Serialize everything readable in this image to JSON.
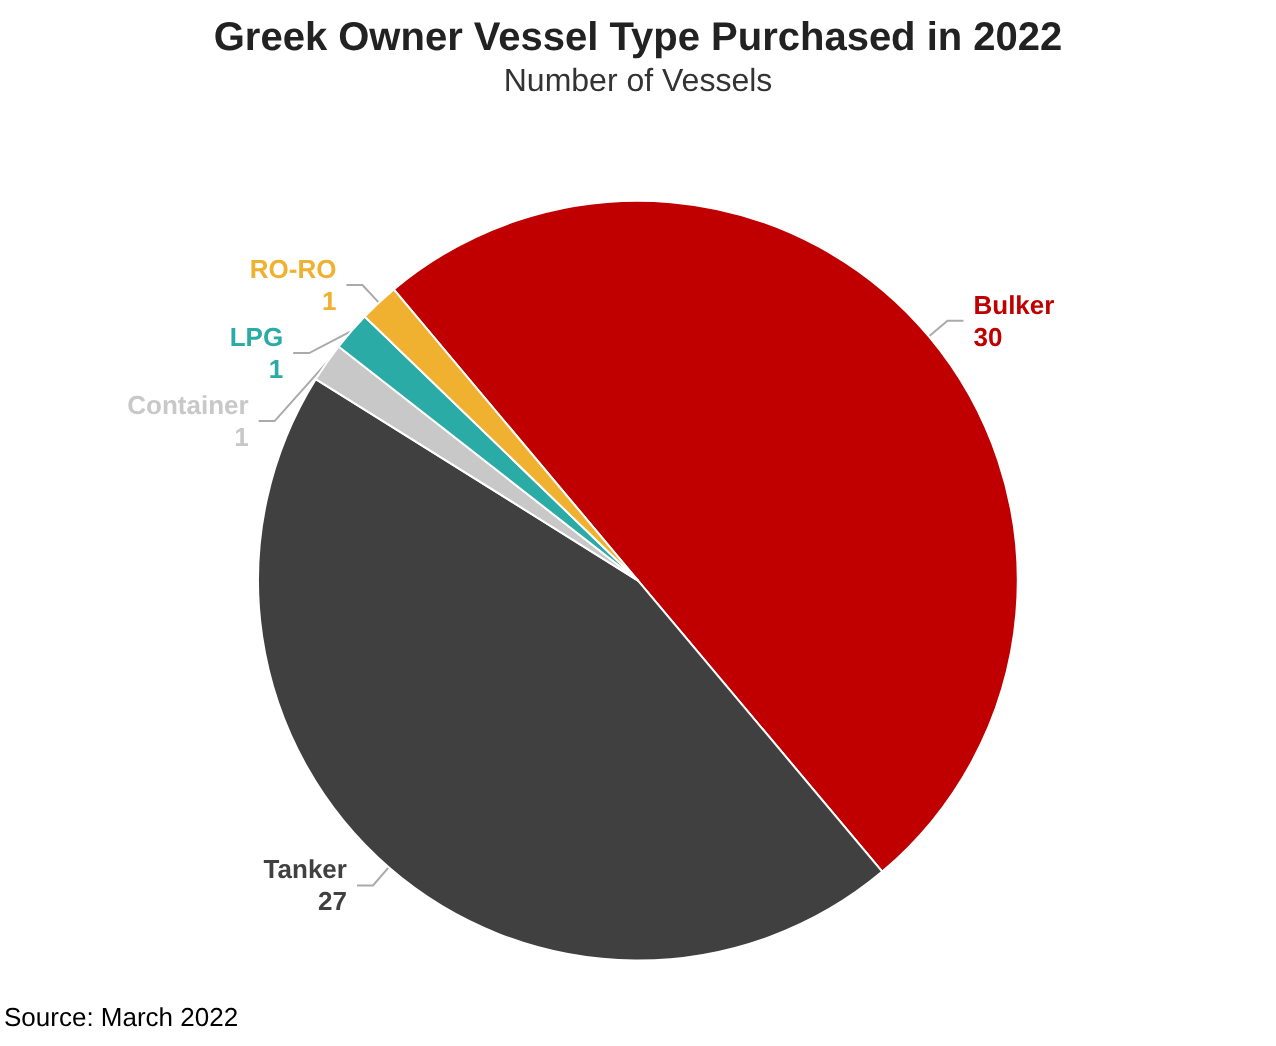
{
  "chart_data": {
    "type": "pie",
    "title": "Greek Owner Vessel Type Purchased in 2022",
    "subtitle": "Number of Vessels",
    "categories": [
      "Bulker",
      "Tanker",
      "Container",
      "LPG",
      "RO-RO"
    ],
    "values": [
      30,
      27,
      1,
      1,
      1
    ],
    "colors": [
      "#c00000",
      "#404040",
      "#c8c8c8",
      "#2aaba5",
      "#f0b030"
    ],
    "data_labels": true,
    "legend": false,
    "annotations": [
      "Source: March 2022"
    ]
  }
}
